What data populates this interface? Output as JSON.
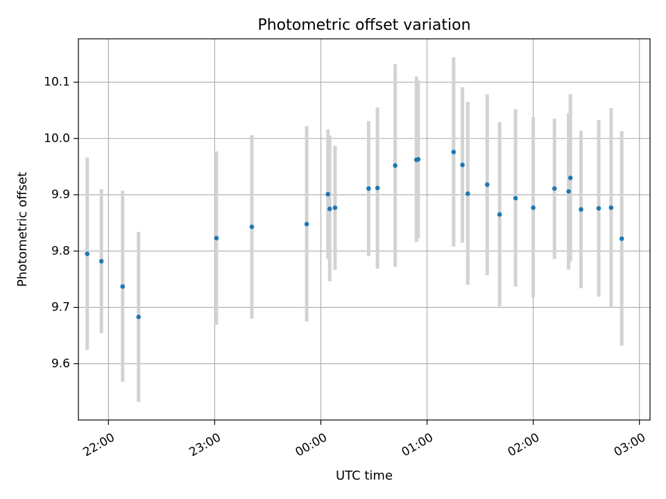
{
  "chart_data": {
    "type": "scatter",
    "title": "Photometric offset variation",
    "xlabel": "UTC time",
    "ylabel": "Photometric offset",
    "x_ticks": [
      "22:00",
      "23:00",
      "00:00",
      "01:00",
      "02:00",
      "03:00"
    ],
    "y_ticks": [
      "9.6",
      "9.7",
      "9.8",
      "9.9",
      "10.0",
      "10.1"
    ],
    "xlim": [
      "21:43",
      "03:06"
    ],
    "ylim": [
      9.5,
      10.177
    ],
    "grid": true,
    "colors": {
      "point": "#1f77b4",
      "errorbar": "#d3d3d3",
      "grid": "#b0b0b0"
    },
    "points": [
      {
        "time": "21:48",
        "y": 9.795,
        "low": 9.624,
        "high": 9.966
      },
      {
        "time": "21:56",
        "y": 9.782,
        "low": 9.654,
        "high": 9.91
      },
      {
        "time": "22:08",
        "y": 9.737,
        "low": 9.568,
        "high": 9.907
      },
      {
        "time": "22:17",
        "y": 9.683,
        "low": 9.532,
        "high": 9.834
      },
      {
        "time": "23:01",
        "y": 9.823,
        "low": 9.669,
        "high": 9.977
      },
      {
        "time": "23:21",
        "y": 9.843,
        "low": 9.68,
        "high": 10.006
      },
      {
        "time": "23:52",
        "y": 9.848,
        "low": 9.675,
        "high": 10.022
      },
      {
        "time": "00:04",
        "y": 9.901,
        "low": 9.786,
        "high": 10.016
      },
      {
        "time": "00:05",
        "y": 9.875,
        "low": 9.746,
        "high": 10.005
      },
      {
        "time": "00:08",
        "y": 9.877,
        "low": 9.767,
        "high": 9.987
      },
      {
        "time": "00:27",
        "y": 9.911,
        "low": 9.791,
        "high": 10.031
      },
      {
        "time": "00:32",
        "y": 9.912,
        "low": 9.769,
        "high": 10.055
      },
      {
        "time": "00:42",
        "y": 9.952,
        "low": 9.772,
        "high": 10.132
      },
      {
        "time": "00:54",
        "y": 9.962,
        "low": 9.816,
        "high": 10.11
      },
      {
        "time": "00:55",
        "y": 9.963,
        "low": 9.822,
        "high": 10.103
      },
      {
        "time": "01:15",
        "y": 9.976,
        "low": 9.808,
        "high": 10.144
      },
      {
        "time": "01:20",
        "y": 9.953,
        "low": 9.815,
        "high": 10.091
      },
      {
        "time": "01:23",
        "y": 9.902,
        "low": 9.74,
        "high": 10.065
      },
      {
        "time": "01:34",
        "y": 9.918,
        "low": 9.757,
        "high": 10.078
      },
      {
        "time": "01:41",
        "y": 9.865,
        "low": 9.702,
        "high": 10.029
      },
      {
        "time": "01:50",
        "y": 9.894,
        "low": 9.737,
        "high": 10.052
      },
      {
        "time": "02:00",
        "y": 9.877,
        "low": 9.717,
        "high": 10.038
      },
      {
        "time": "02:12",
        "y": 9.911,
        "low": 9.786,
        "high": 10.035
      },
      {
        "time": "02:20",
        "y": 9.906,
        "low": 9.767,
        "high": 10.045
      },
      {
        "time": "02:21",
        "y": 9.93,
        "low": 9.782,
        "high": 10.079
      },
      {
        "time": "02:27",
        "y": 9.874,
        "low": 9.734,
        "high": 10.014
      },
      {
        "time": "02:37",
        "y": 9.876,
        "low": 9.719,
        "high": 10.033
      },
      {
        "time": "02:44",
        "y": 9.877,
        "low": 9.7,
        "high": 10.054
      },
      {
        "time": "02:50",
        "y": 9.822,
        "low": 9.632,
        "high": 10.013
      }
    ]
  }
}
